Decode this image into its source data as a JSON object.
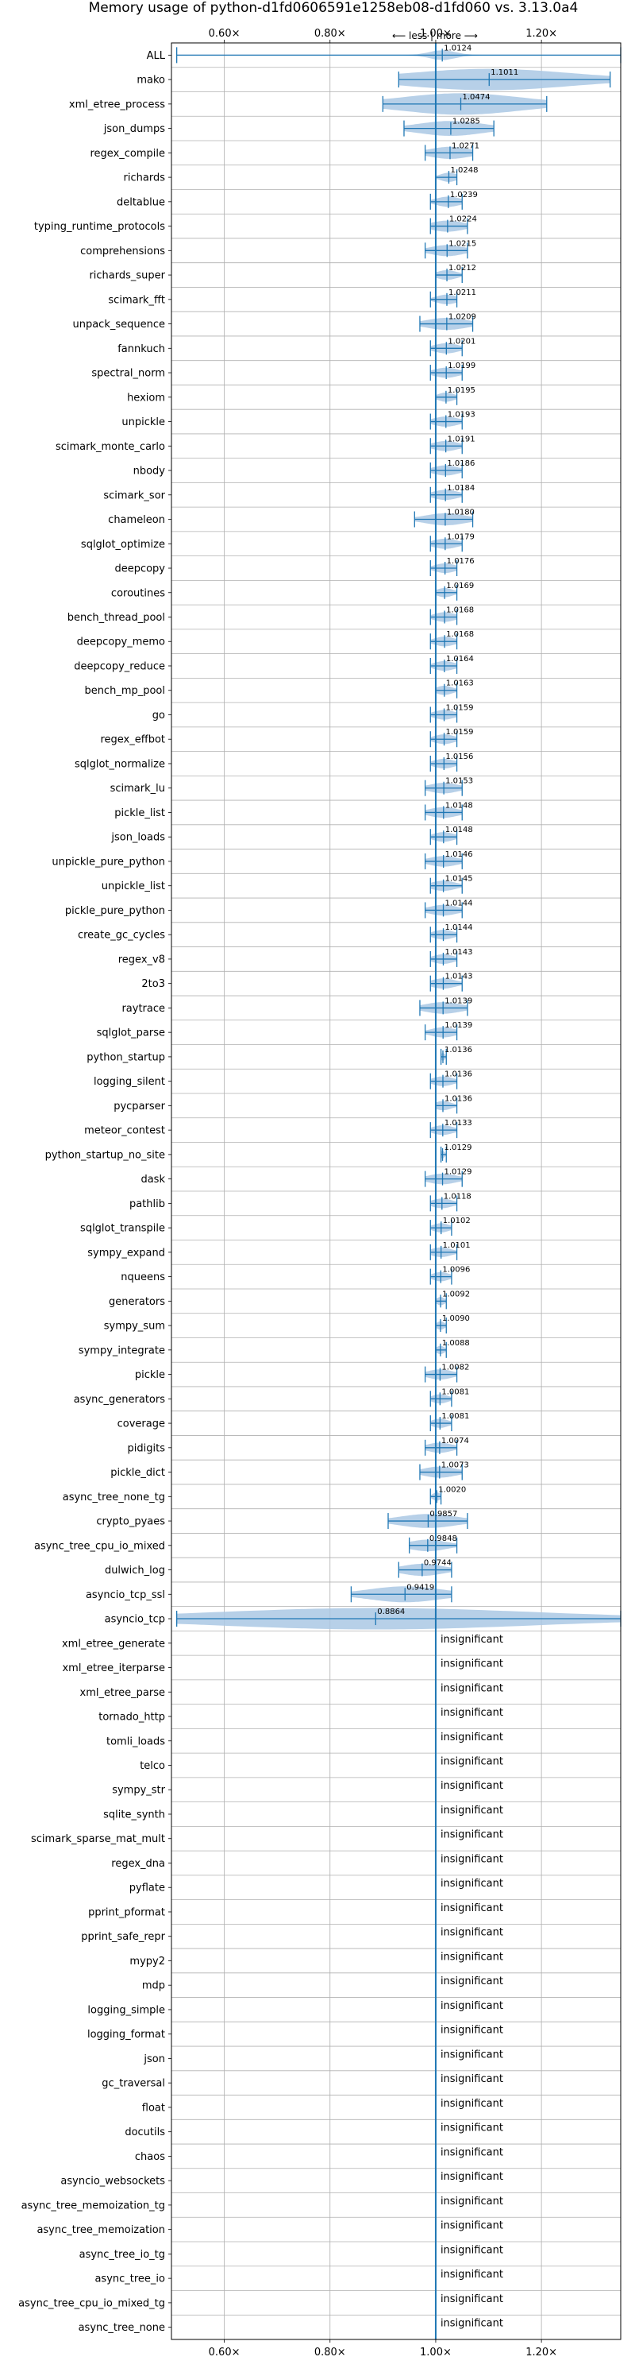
{
  "chart_data": {
    "type": "violin",
    "title": "Memory usage of python-d1fd0606591e1258eb08-d1fd060 vs. 3.13.0a4",
    "direction_label": "⟵ less | more ⟶",
    "xlim": [
      0.5,
      1.35
    ],
    "x_ticks": [
      0.6,
      0.8,
      1.0,
      1.2
    ],
    "x_tick_labels": [
      "0.60×",
      "0.80×",
      "1.00×",
      "1.20×"
    ],
    "reference_x": 1.0,
    "insignificant_text": "insignificant",
    "colors": {
      "accent": "#1f77b4",
      "fill": "#aac8e4",
      "grid": "#b0b0b0"
    },
    "benchmarks": [
      {
        "name": "ALL",
        "value": 1.0124,
        "min": 0.51,
        "max": 1.35,
        "spread": 0.03,
        "sig": true
      },
      {
        "name": "mako",
        "value": 1.1011,
        "min": 0.93,
        "max": 1.33,
        "spread": 0.2,
        "sig": true
      },
      {
        "name": "xml_etree_process",
        "value": 1.0474,
        "min": 0.9,
        "max": 1.21,
        "spread": 0.15,
        "sig": true
      },
      {
        "name": "json_dumps",
        "value": 1.0285,
        "min": 0.94,
        "max": 1.11,
        "spread": 0.08,
        "sig": true
      },
      {
        "name": "regex_compile",
        "value": 1.0271,
        "min": 0.98,
        "max": 1.07,
        "spread": 0.05,
        "sig": true
      },
      {
        "name": "richards",
        "value": 1.0248,
        "min": 1.0,
        "max": 1.04,
        "spread": 0.02,
        "sig": true
      },
      {
        "name": "deltablue",
        "value": 1.0239,
        "min": 0.99,
        "max": 1.05,
        "spread": 0.03,
        "sig": true
      },
      {
        "name": "typing_runtime_protocols",
        "value": 1.0224,
        "min": 0.99,
        "max": 1.06,
        "spread": 0.04,
        "sig": true
      },
      {
        "name": "comprehensions",
        "value": 1.0215,
        "min": 0.98,
        "max": 1.06,
        "spread": 0.04,
        "sig": true
      },
      {
        "name": "richards_super",
        "value": 1.0212,
        "min": 1.0,
        "max": 1.05,
        "spread": 0.025,
        "sig": true
      },
      {
        "name": "scimark_fft",
        "value": 1.0211,
        "min": 0.99,
        "max": 1.04,
        "spread": 0.025,
        "sig": true
      },
      {
        "name": "unpack_sequence",
        "value": 1.0209,
        "min": 0.97,
        "max": 1.07,
        "spread": 0.05,
        "sig": true
      },
      {
        "name": "fannkuch",
        "value": 1.0201,
        "min": 0.99,
        "max": 1.05,
        "spread": 0.03,
        "sig": true
      },
      {
        "name": "spectral_norm",
        "value": 1.0199,
        "min": 0.99,
        "max": 1.05,
        "spread": 0.03,
        "sig": true
      },
      {
        "name": "hexiom",
        "value": 1.0195,
        "min": 1.0,
        "max": 1.04,
        "spread": 0.02,
        "sig": true
      },
      {
        "name": "unpickle",
        "value": 1.0193,
        "min": 0.99,
        "max": 1.05,
        "spread": 0.03,
        "sig": true
      },
      {
        "name": "scimark_monte_carlo",
        "value": 1.0191,
        "min": 0.99,
        "max": 1.05,
        "spread": 0.03,
        "sig": true
      },
      {
        "name": "nbody",
        "value": 1.0186,
        "min": 0.99,
        "max": 1.05,
        "spread": 0.03,
        "sig": true
      },
      {
        "name": "scimark_sor",
        "value": 1.0184,
        "min": 0.99,
        "max": 1.05,
        "spread": 0.03,
        "sig": true
      },
      {
        "name": "chameleon",
        "value": 1.018,
        "min": 0.96,
        "max": 1.07,
        "spread": 0.05,
        "sig": true
      },
      {
        "name": "sqlglot_optimize",
        "value": 1.0179,
        "min": 0.99,
        "max": 1.05,
        "spread": 0.03,
        "sig": true
      },
      {
        "name": "deepcopy",
        "value": 1.0176,
        "min": 0.99,
        "max": 1.04,
        "spread": 0.025,
        "sig": true
      },
      {
        "name": "coroutines",
        "value": 1.0169,
        "min": 1.0,
        "max": 1.04,
        "spread": 0.02,
        "sig": true
      },
      {
        "name": "bench_thread_pool",
        "value": 1.0168,
        "min": 0.99,
        "max": 1.04,
        "spread": 0.025,
        "sig": true
      },
      {
        "name": "deepcopy_memo",
        "value": 1.0168,
        "min": 0.99,
        "max": 1.04,
        "spread": 0.025,
        "sig": true
      },
      {
        "name": "deepcopy_reduce",
        "value": 1.0164,
        "min": 0.99,
        "max": 1.04,
        "spread": 0.025,
        "sig": true
      },
      {
        "name": "bench_mp_pool",
        "value": 1.0163,
        "min": 1.0,
        "max": 1.04,
        "spread": 0.02,
        "sig": true
      },
      {
        "name": "go",
        "value": 1.0159,
        "min": 0.99,
        "max": 1.04,
        "spread": 0.025,
        "sig": true
      },
      {
        "name": "regex_effbot",
        "value": 1.0159,
        "min": 0.99,
        "max": 1.04,
        "spread": 0.025,
        "sig": true
      },
      {
        "name": "sqlglot_normalize",
        "value": 1.0156,
        "min": 0.99,
        "max": 1.04,
        "spread": 0.025,
        "sig": true
      },
      {
        "name": "scimark_lu",
        "value": 1.0153,
        "min": 0.98,
        "max": 1.05,
        "spread": 0.035,
        "sig": true
      },
      {
        "name": "pickle_list",
        "value": 1.0148,
        "min": 0.98,
        "max": 1.05,
        "spread": 0.035,
        "sig": true
      },
      {
        "name": "json_loads",
        "value": 1.0148,
        "min": 0.99,
        "max": 1.04,
        "spread": 0.025,
        "sig": true
      },
      {
        "name": "unpickle_pure_python",
        "value": 1.0146,
        "min": 0.98,
        "max": 1.05,
        "spread": 0.035,
        "sig": true
      },
      {
        "name": "unpickle_list",
        "value": 1.0145,
        "min": 0.99,
        "max": 1.05,
        "spread": 0.03,
        "sig": true
      },
      {
        "name": "pickle_pure_python",
        "value": 1.0144,
        "min": 0.98,
        "max": 1.05,
        "spread": 0.035,
        "sig": true
      },
      {
        "name": "create_gc_cycles",
        "value": 1.0144,
        "min": 0.99,
        "max": 1.04,
        "spread": 0.025,
        "sig": true
      },
      {
        "name": "regex_v8",
        "value": 1.0143,
        "min": 0.99,
        "max": 1.04,
        "spread": 0.025,
        "sig": true
      },
      {
        "name": "2to3",
        "value": 1.0143,
        "min": 0.99,
        "max": 1.05,
        "spread": 0.03,
        "sig": true
      },
      {
        "name": "raytrace",
        "value": 1.0139,
        "min": 0.97,
        "max": 1.06,
        "spread": 0.045,
        "sig": true
      },
      {
        "name": "sqlglot_parse",
        "value": 1.0139,
        "min": 0.98,
        "max": 1.04,
        "spread": 0.03,
        "sig": true
      },
      {
        "name": "python_startup",
        "value": 1.0136,
        "min": 1.01,
        "max": 1.02,
        "spread": 0.005,
        "sig": true
      },
      {
        "name": "logging_silent",
        "value": 1.0136,
        "min": 0.99,
        "max": 1.04,
        "spread": 0.025,
        "sig": true
      },
      {
        "name": "pycparser",
        "value": 1.0136,
        "min": 1.0,
        "max": 1.04,
        "spread": 0.02,
        "sig": true
      },
      {
        "name": "meteor_contest",
        "value": 1.0133,
        "min": 0.99,
        "max": 1.04,
        "spread": 0.025,
        "sig": true
      },
      {
        "name": "python_startup_no_site",
        "value": 1.0129,
        "min": 1.01,
        "max": 1.02,
        "spread": 0.005,
        "sig": true
      },
      {
        "name": "dask",
        "value": 1.0129,
        "min": 0.98,
        "max": 1.05,
        "spread": 0.035,
        "sig": true
      },
      {
        "name": "pathlib",
        "value": 1.0118,
        "min": 0.99,
        "max": 1.04,
        "spread": 0.025,
        "sig": true
      },
      {
        "name": "sqlglot_transpile",
        "value": 1.0102,
        "min": 0.99,
        "max": 1.03,
        "spread": 0.02,
        "sig": true
      },
      {
        "name": "sympy_expand",
        "value": 1.0101,
        "min": 0.99,
        "max": 1.04,
        "spread": 0.025,
        "sig": true
      },
      {
        "name": "nqueens",
        "value": 1.0096,
        "min": 0.99,
        "max": 1.03,
        "spread": 0.02,
        "sig": true
      },
      {
        "name": "generators",
        "value": 1.0092,
        "min": 1.0,
        "max": 1.02,
        "spread": 0.01,
        "sig": true
      },
      {
        "name": "sympy_sum",
        "value": 1.009,
        "min": 1.0,
        "max": 1.02,
        "spread": 0.01,
        "sig": true
      },
      {
        "name": "sympy_integrate",
        "value": 1.0088,
        "min": 1.0,
        "max": 1.02,
        "spread": 0.01,
        "sig": true
      },
      {
        "name": "pickle",
        "value": 1.0082,
        "min": 0.98,
        "max": 1.04,
        "spread": 0.03,
        "sig": true
      },
      {
        "name": "async_generators",
        "value": 1.0081,
        "min": 0.99,
        "max": 1.03,
        "spread": 0.02,
        "sig": true
      },
      {
        "name": "coverage",
        "value": 1.0081,
        "min": 0.99,
        "max": 1.03,
        "spread": 0.02,
        "sig": true
      },
      {
        "name": "pidigits",
        "value": 1.0074,
        "min": 0.98,
        "max": 1.04,
        "spread": 0.03,
        "sig": true
      },
      {
        "name": "pickle_dict",
        "value": 1.0073,
        "min": 0.97,
        "max": 1.05,
        "spread": 0.04,
        "sig": true
      },
      {
        "name": "async_tree_none_tg",
        "value": 1.002,
        "min": 0.99,
        "max": 1.01,
        "spread": 0.01,
        "sig": true
      },
      {
        "name": "crypto_pyaes",
        "value": 0.9857,
        "min": 0.91,
        "max": 1.06,
        "spread": 0.07,
        "sig": true
      },
      {
        "name": "async_tree_cpu_io_mixed",
        "value": 0.9848,
        "min": 0.95,
        "max": 1.04,
        "spread": 0.045,
        "sig": true
      },
      {
        "name": "dulwich_log",
        "value": 0.9744,
        "min": 0.93,
        "max": 1.03,
        "spread": 0.05,
        "sig": true
      },
      {
        "name": "asyncio_tcp_ssl",
        "value": 0.9419,
        "min": 0.84,
        "max": 1.03,
        "spread": 0.09,
        "sig": true
      },
      {
        "name": "asyncio_tcp",
        "value": 0.8864,
        "min": 0.51,
        "max": 1.35,
        "spread": 0.4,
        "sig": true
      },
      {
        "name": "xml_etree_generate",
        "sig": false
      },
      {
        "name": "xml_etree_iterparse",
        "sig": false
      },
      {
        "name": "xml_etree_parse",
        "sig": false
      },
      {
        "name": "tornado_http",
        "sig": false
      },
      {
        "name": "tomli_loads",
        "sig": false
      },
      {
        "name": "telco",
        "sig": false
      },
      {
        "name": "sympy_str",
        "sig": false
      },
      {
        "name": "sqlite_synth",
        "sig": false
      },
      {
        "name": "scimark_sparse_mat_mult",
        "sig": false
      },
      {
        "name": "regex_dna",
        "sig": false
      },
      {
        "name": "pyflate",
        "sig": false
      },
      {
        "name": "pprint_pformat",
        "sig": false
      },
      {
        "name": "pprint_safe_repr",
        "sig": false
      },
      {
        "name": "mypy2",
        "sig": false
      },
      {
        "name": "mdp",
        "sig": false
      },
      {
        "name": "logging_simple",
        "sig": false
      },
      {
        "name": "logging_format",
        "sig": false
      },
      {
        "name": "json",
        "sig": false
      },
      {
        "name": "gc_traversal",
        "sig": false
      },
      {
        "name": "float",
        "sig": false
      },
      {
        "name": "docutils",
        "sig": false
      },
      {
        "name": "chaos",
        "sig": false
      },
      {
        "name": "asyncio_websockets",
        "sig": false
      },
      {
        "name": "async_tree_memoization_tg",
        "sig": false
      },
      {
        "name": "async_tree_memoization",
        "sig": false
      },
      {
        "name": "async_tree_io_tg",
        "sig": false
      },
      {
        "name": "async_tree_io",
        "sig": false
      },
      {
        "name": "async_tree_cpu_io_mixed_tg",
        "sig": false
      },
      {
        "name": "async_tree_none",
        "sig": false
      }
    ]
  }
}
